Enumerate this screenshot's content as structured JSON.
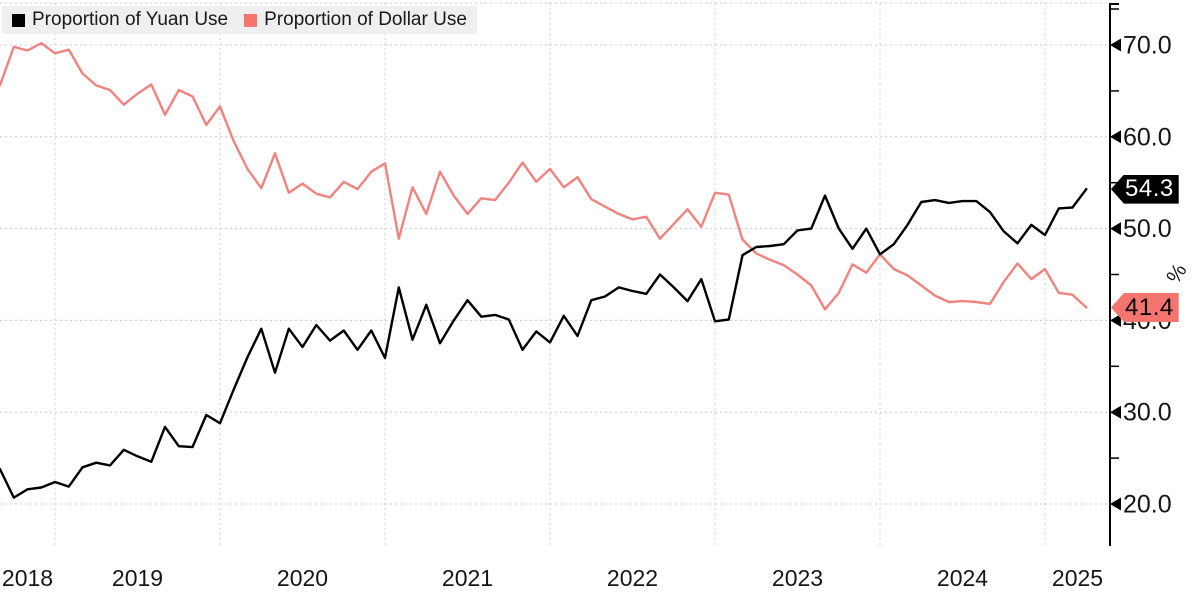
{
  "legend": {
    "items": [
      {
        "label": "Proportion of Yuan Use",
        "color": "#000000"
      },
      {
        "label": "Proportion of Dollar Use",
        "color": "#f4746e"
      }
    ],
    "background": "#efefef"
  },
  "axis": {
    "unit_label": "%",
    "y_major_ticks": [
      70.0,
      60.0,
      50.0,
      40.0,
      30.0,
      20.0
    ],
    "y_minor_ticks": [
      65.0,
      55.0,
      45.0,
      35.0,
      25.0
    ],
    "x_year_labels": [
      "2018",
      "2019",
      "2020",
      "2021",
      "2022",
      "2023",
      "2024",
      "2025"
    ]
  },
  "badges": {
    "yuan": {
      "value": "54.3",
      "bg": "#000000",
      "text_color": "#ffffff"
    },
    "dollar": {
      "value": "41.4",
      "bg": "#f4746e",
      "text_color": "#000000"
    }
  },
  "chart_data": {
    "type": "line",
    "title": "",
    "xlabel": "",
    "ylabel": "%",
    "frequency": "monthly",
    "x_start": "2018-09",
    "x_end": "2025-04",
    "ylim": [
      17,
      74
    ],
    "y_tick_step": 10,
    "grid": "dashed",
    "legend_position": "top-left",
    "series": [
      {
        "name": "Proportion of Yuan Use",
        "color": "#000000",
        "last_value_label": "54.3",
        "values": [
          23.8,
          20.7,
          21.6,
          21.8,
          22.4,
          21.9,
          24.0,
          24.5,
          24.2,
          25.9,
          25.2,
          24.6,
          28.4,
          26.3,
          26.2,
          29.7,
          28.8,
          32.5,
          36.0,
          39.1,
          34.3,
          39.1,
          37.1,
          39.5,
          37.8,
          38.9,
          36.8,
          38.9,
          35.9,
          43.6,
          37.9,
          41.7,
          37.5,
          40.0,
          42.2,
          40.4,
          40.6,
          40.1,
          36.8,
          38.8,
          37.6,
          40.5,
          38.3,
          42.2,
          42.6,
          43.6,
          43.2,
          42.9,
          45.0,
          43.6,
          42.1,
          44.5,
          39.9,
          40.1,
          47.1,
          48.0,
          48.1,
          48.3,
          49.8,
          50.0,
          53.6,
          50.0,
          47.8,
          50.0,
          47.2,
          48.3,
          50.4,
          52.9,
          53.1,
          52.8,
          53.0,
          53.0,
          51.8,
          49.7,
          48.4,
          50.4,
          49.3,
          52.2,
          52.3,
          54.3
        ]
      },
      {
        "name": "Proportion of Dollar Use",
        "color": "#f1837e",
        "last_value_label": "41.4",
        "values": [
          65.6,
          69.8,
          69.4,
          70.2,
          69.1,
          69.5,
          66.9,
          65.6,
          65.1,
          63.5,
          64.7,
          65.7,
          62.4,
          65.1,
          64.4,
          61.3,
          63.3,
          59.5,
          56.5,
          54.4,
          58.2,
          53.9,
          54.9,
          53.8,
          53.4,
          55.1,
          54.3,
          56.2,
          57.1,
          48.9,
          54.5,
          51.6,
          56.2,
          53.6,
          51.6,
          53.3,
          53.1,
          55.0,
          57.2,
          55.1,
          56.5,
          54.5,
          55.6,
          53.2,
          52.4,
          51.6,
          51.0,
          51.3,
          48.9,
          50.5,
          52.1,
          50.2,
          53.9,
          53.7,
          48.8,
          47.3,
          46.6,
          46.0,
          45.0,
          43.8,
          41.2,
          43.0,
          46.1,
          45.2,
          47.2,
          45.6,
          44.9,
          43.8,
          42.7,
          42.0,
          42.1,
          42.0,
          41.8,
          44.2,
          46.2,
          44.5,
          45.6,
          43.0,
          42.8,
          41.4
        ]
      }
    ]
  }
}
